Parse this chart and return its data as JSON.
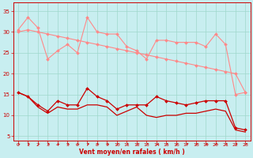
{
  "x": [
    0,
    1,
    2,
    3,
    4,
    5,
    6,
    7,
    8,
    9,
    10,
    11,
    12,
    13,
    14,
    15,
    16,
    17,
    18,
    19,
    20,
    21,
    22,
    23
  ],
  "rafales_top": [
    30.5,
    33.5,
    31.0,
    23.5,
    25.5,
    27.0,
    25.0,
    33.5,
    30.0,
    29.5,
    29.5,
    26.5,
    25.5,
    23.5,
    28.0,
    28.0,
    27.5,
    27.5,
    27.5,
    26.5,
    29.5,
    27.0,
    15.0,
    15.5
  ],
  "rafales_bot": [
    30.0,
    30.5,
    30.0,
    29.5,
    29.0,
    28.5,
    28.0,
    27.5,
    27.0,
    26.5,
    26.0,
    25.5,
    25.0,
    24.5,
    24.0,
    23.5,
    23.0,
    22.5,
    22.0,
    21.5,
    21.0,
    20.5,
    20.0,
    15.5
  ],
  "vent_top": [
    15.5,
    14.5,
    12.5,
    11.0,
    13.5,
    12.5,
    12.5,
    16.5,
    14.5,
    13.5,
    11.5,
    12.5,
    12.5,
    12.5,
    14.5,
    13.5,
    13.0,
    12.5,
    13.0,
    13.5,
    13.5,
    13.5,
    7.0,
    6.5
  ],
  "vent_bot": [
    15.5,
    14.5,
    12.0,
    10.5,
    12.0,
    11.5,
    11.5,
    12.5,
    12.5,
    12.0,
    10.0,
    11.0,
    12.0,
    10.0,
    9.5,
    10.0,
    10.0,
    10.5,
    10.5,
    11.0,
    11.5,
    11.0,
    6.5,
    6.0
  ],
  "bg_color": "#c8eef0",
  "grid_color": "#9fd8cc",
  "line_color_dark": "#cc0000",
  "line_color_light": "#ff8888",
  "xlabel": "Vent moyen/en rafales ( km/h )",
  "ylim": [
    4,
    37
  ],
  "yticks": [
    5,
    10,
    15,
    20,
    25,
    30,
    35
  ],
  "xticks": [
    0,
    1,
    2,
    3,
    4,
    5,
    6,
    7,
    8,
    9,
    10,
    11,
    12,
    13,
    14,
    15,
    16,
    17,
    18,
    19,
    20,
    21,
    22,
    23
  ]
}
